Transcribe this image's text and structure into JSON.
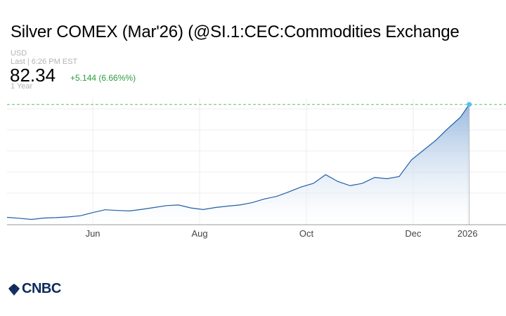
{
  "header": {
    "title": "Silver COMEX (Mar'26) (@SI.1:CEC:Commodities Exchange",
    "currency": "USD",
    "last_update": "Last | 6:26 PM EST",
    "price": "82.34",
    "change": "+5.144 (6.66%%)",
    "range": "1 Year"
  },
  "brand": {
    "name": "CNBC",
    "logo_icon": "cnbc-peacock-icon"
  },
  "colors": {
    "line": "#1f5fa8",
    "area_top": "#8db1dc",
    "area_bottom": "#ffffff",
    "reference_line": "#5cbf6b",
    "end_marker": "#4fc3f7",
    "positive_change": "#2e9a3e"
  },
  "chart_data": {
    "type": "area",
    "title": "Silver COMEX (Mar'26) (@SI.1:CEC:Commodities Exchange",
    "xlabel": "",
    "ylabel": "",
    "x_ticks": [
      {
        "label": "Jun",
        "date": "2025-06-01"
      },
      {
        "label": "Aug",
        "date": "2025-08-01"
      },
      {
        "label": "Oct",
        "date": "2025-10-01"
      },
      {
        "label": "Dec",
        "date": "2025-12-01"
      },
      {
        "label": "2026",
        "date": "2026-01-01"
      }
    ],
    "xlim": [
      "2025-04-13",
      "2026-01-23"
    ],
    "ylim": [
      30,
      85
    ],
    "grid": true,
    "reference_line": {
      "value": 82.34,
      "style": "dashed"
    },
    "series": [
      {
        "x": [
          "2025-04-13",
          "2025-04-20",
          "2025-04-27",
          "2025-05-04",
          "2025-05-11",
          "2025-05-18",
          "2025-05-25",
          "2025-06-01",
          "2025-06-08",
          "2025-06-15",
          "2025-06-22",
          "2025-06-29",
          "2025-07-06",
          "2025-07-13",
          "2025-07-20",
          "2025-07-27",
          "2025-08-03",
          "2025-08-10",
          "2025-08-17",
          "2025-08-24",
          "2025-08-31",
          "2025-09-07",
          "2025-09-14",
          "2025-09-21",
          "2025-09-28",
          "2025-10-05",
          "2025-10-12",
          "2025-10-19",
          "2025-10-26",
          "2025-11-02",
          "2025-11-09",
          "2025-11-16",
          "2025-11-23",
          "2025-11-30",
          "2025-12-07",
          "2025-12-14",
          "2025-12-21",
          "2025-12-28",
          "2026-01-02"
        ],
        "values": [
          33.2,
          32.8,
          32.3,
          32.9,
          33.1,
          33.4,
          33.9,
          35.3,
          36.5,
          36.2,
          36.0,
          36.7,
          37.5,
          38.3,
          38.6,
          37.3,
          36.6,
          37.5,
          38.1,
          38.6,
          39.6,
          41.2,
          42.3,
          44.3,
          46.4,
          48.0,
          51.8,
          48.8,
          47.0,
          48.0,
          50.6,
          50.0,
          51.0,
          58.2,
          62.5,
          66.8,
          72.0,
          76.8,
          82.34
        ]
      }
    ]
  }
}
